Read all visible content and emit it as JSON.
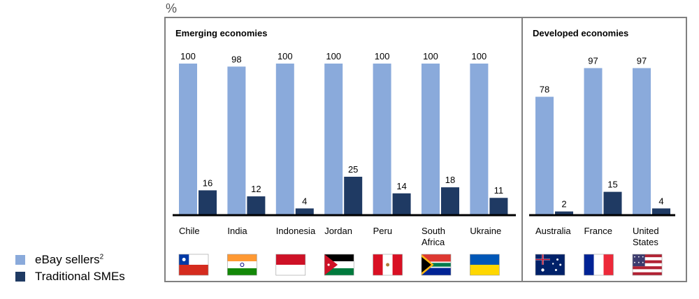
{
  "unit_label": "%",
  "colors": {
    "ebay": "#8aaadb",
    "traditional": "#1f3a63"
  },
  "legend": {
    "ebay": "eBay sellers",
    "ebay_footnote": "2",
    "traditional": "Traditional SMEs"
  },
  "chart_data": {
    "type": "bar",
    "ylim": [
      0,
      100
    ],
    "series_names": [
      "eBay sellers",
      "Traditional SMEs"
    ],
    "groups": [
      {
        "title": "Emerging economies",
        "categories": [
          {
            "name": "Chile",
            "flag": "chile-flag",
            "values": [
              100,
              16
            ]
          },
          {
            "name": "India",
            "flag": "india-flag",
            "values": [
              98,
              12
            ]
          },
          {
            "name": "Indonesia",
            "flag": "indonesia-flag",
            "values": [
              100,
              4
            ]
          },
          {
            "name": "Jordan",
            "flag": "jordan-flag",
            "values": [
              100,
              25
            ]
          },
          {
            "name": "Peru",
            "flag": "peru-flag",
            "values": [
              100,
              14
            ]
          },
          {
            "name": "South Africa",
            "flag": "south-africa-flag",
            "values": [
              100,
              18
            ]
          },
          {
            "name": "Ukraine",
            "flag": "ukraine-flag",
            "values": [
              100,
              11
            ]
          }
        ]
      },
      {
        "title": "Developed economies",
        "categories": [
          {
            "name": "Australia",
            "flag": "australia-flag",
            "values": [
              78,
              2
            ]
          },
          {
            "name": "France",
            "flag": "france-flag",
            "values": [
              97,
              15
            ]
          },
          {
            "name": "United States",
            "flag": "usa-flag",
            "values": [
              97,
              4
            ]
          }
        ]
      }
    ]
  }
}
